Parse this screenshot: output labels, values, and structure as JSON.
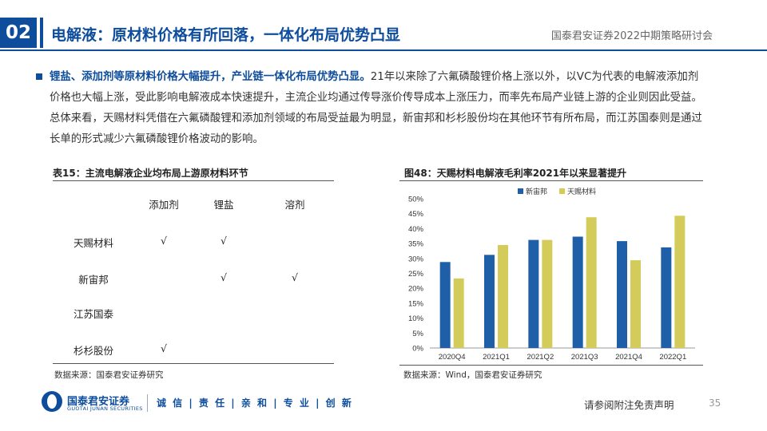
{
  "header": {
    "section_number": "02",
    "title": "电解液：原材料价格有所回落，一体化布局优势凸显",
    "conference": "国泰君安证券2022中期策略研讨会"
  },
  "body": {
    "lead": "锂盐、添加剂等原材料价格大幅提升，产业链一体化布局优势凸显。",
    "text": "21年以来除了六氟磷酸锂价格上涨以外，以VC为代表的电解液添加剂价格也大幅上涨，受此影响电解液成本快速提升，主流企业均通过传导涨价传导成本上涨压力，而率先布局产业链上游的企业则因此受益。总体来看，天赐材料凭借在六氟磷酸锂和添加剂领域的布局受益最为明显，新宙邦和杉杉股份均在其他环节有所布局，而江苏国泰则是通过长单的形式减少六氟磷酸锂价格波动的影响。"
  },
  "table": {
    "title": "表15：主流电解液企业均布局上游原材料环节",
    "columns": [
      "添加剂",
      "锂盐",
      "溶剂"
    ],
    "rows": [
      {
        "company": "天赐材料",
        "marks": [
          "√",
          "√",
          ""
        ]
      },
      {
        "company": "新宙邦",
        "marks": [
          "",
          "√",
          "√"
        ]
      },
      {
        "company": "江苏国泰",
        "marks": [
          "",
          "",
          ""
        ]
      },
      {
        "company": "杉杉股份",
        "marks": [
          "√",
          "",
          ""
        ]
      }
    ],
    "source": "数据来源：国泰君安证券研究"
  },
  "chart": {
    "title": "图48：天赐材料电解液毛利率2021年以来显著提升",
    "source": "数据来源：Wind，国泰君安证券研究"
  },
  "chart_data": {
    "type": "bar",
    "categories": [
      "2020Q4",
      "2021Q1",
      "2021Q2",
      "2021Q3",
      "2021Q4",
      "2022Q1"
    ],
    "series": [
      {
        "name": "新宙邦",
        "values": [
          28.8,
          31.2,
          36.2,
          37.3,
          35.8,
          33.7
        ],
        "color": "#1f5fa8"
      },
      {
        "name": "天赐材料",
        "values": [
          23.3,
          34.5,
          36.2,
          43.8,
          29.4,
          44.3
        ],
        "color": "#d4cc5a"
      }
    ],
    "ylim": [
      0,
      50
    ],
    "yticks": [
      "0%",
      "5%",
      "10%",
      "15%",
      "20%",
      "25%",
      "30%",
      "35%",
      "40%",
      "45%",
      "50%"
    ],
    "legend": "top-left",
    "grid": false
  },
  "footer": {
    "logo_cn": "国泰君安证券",
    "logo_en": "GUOTAI JUNAN SECURITIES",
    "slogan": "诚 信 | 责 任 | 亲 和 | 专 业 | 创 新",
    "disclaimer": "请参阅附注免责声明",
    "page_number": "35"
  }
}
